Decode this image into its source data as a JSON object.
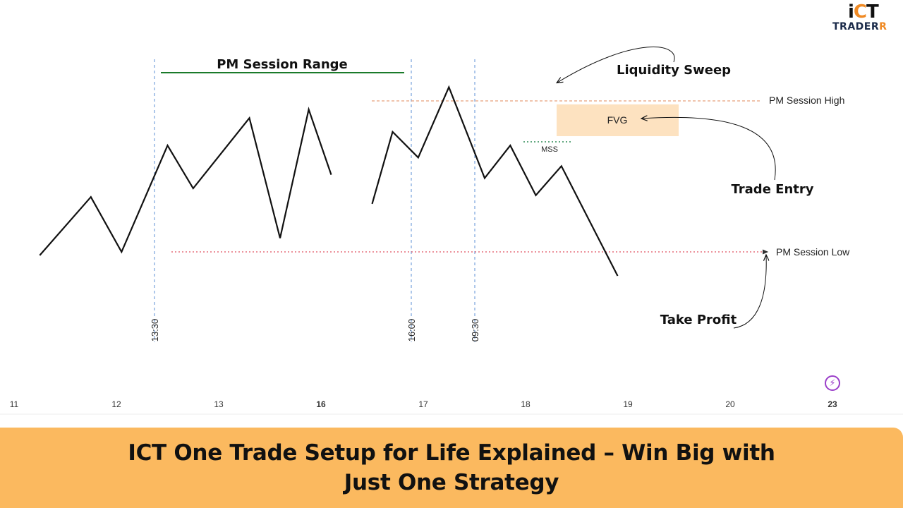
{
  "logo": {
    "mark_i": "i",
    "mark_c": "C",
    "mark_t": "T",
    "text_main": "TRADER",
    "text_accent": "R"
  },
  "banner": {
    "line1": "ICT One Trade Setup for Life Explained – Win Big with",
    "line2": "Just One Strategy"
  },
  "icons": {
    "bolt": "lightning-bolt-icon"
  },
  "colors": {
    "banner_bg": "#fbb95f",
    "range_line": "#1a7a2a",
    "session_high": "#e8a07a",
    "session_low": "#e05060",
    "fvg_box": "#fde2c0",
    "mss_line": "#2e8b57",
    "time_marker": "#5b8fd6"
  },
  "chart_data": {
    "type": "line",
    "x_ticks": [
      {
        "label": "11",
        "bold": false
      },
      {
        "label": "12",
        "bold": false
      },
      {
        "label": "13",
        "bold": false
      },
      {
        "label": "16",
        "bold": true
      },
      {
        "label": "17",
        "bold": false
      },
      {
        "label": "18",
        "bold": false
      },
      {
        "label": "19",
        "bold": false
      },
      {
        "label": "20",
        "bold": false
      },
      {
        "label": "23",
        "bold": true
      }
    ],
    "time_markers": [
      "13:30",
      "16:00",
      "09:30"
    ],
    "series": [
      {
        "segment": "pm_session",
        "points": [
          [
            0.25,
            0.1
          ],
          [
            0.75,
            0.44
          ],
          [
            1.05,
            0.12
          ],
          [
            1.5,
            0.74
          ],
          [
            1.75,
            0.49
          ],
          [
            2.3,
            0.9
          ],
          [
            2.6,
            0.2
          ],
          [
            2.88,
            0.95
          ],
          [
            3.1,
            0.57
          ]
        ]
      },
      {
        "segment": "next_day",
        "points": [
          [
            3.5,
            0.4
          ],
          [
            3.7,
            0.82
          ],
          [
            3.95,
            0.67
          ],
          [
            4.25,
            1.08
          ],
          [
            4.6,
            0.55
          ],
          [
            4.85,
            0.74
          ],
          [
            5.1,
            0.45
          ],
          [
            5.35,
            0.62
          ],
          [
            5.9,
            -0.02
          ]
        ]
      }
    ],
    "levels": [
      {
        "label": "PM Session High",
        "value": 1.0
      },
      {
        "label": "PM Session Low",
        "value": 0.12
      }
    ],
    "annotations": {
      "range_label": "PM Session Range",
      "fvg": "FVG",
      "mss": "MSS",
      "liquidity_sweep": "Liquidity Sweep",
      "trade_entry": "Trade Entry",
      "take_profit": "Take Profit"
    }
  }
}
